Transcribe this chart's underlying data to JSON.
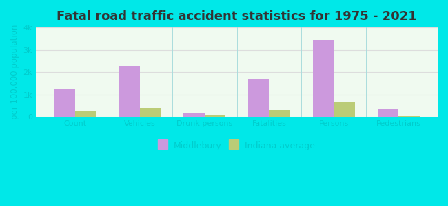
{
  "title": "Fatal road traffic accident statistics for 1975 - 2021",
  "categories": [
    "Count",
    "Vehicles",
    "Drunk persons",
    "Fatalities",
    "Persons",
    "Pedestrians"
  ],
  "middlebury": [
    1270,
    2270,
    175,
    1700,
    3450,
    355
  ],
  "indiana_avg": [
    280,
    400,
    55,
    305,
    650,
    30
  ],
  "middlebury_color": "#cc99dd",
  "indiana_color": "#bbcc77",
  "bar_width": 0.32,
  "ylabel": "per 100,000 population",
  "ylim": [
    0,
    4000
  ],
  "yticks": [
    0,
    1000,
    2000,
    3000,
    4000
  ],
  "ytick_labels": [
    "0",
    "1k",
    "2k",
    "3k",
    "4k"
  ],
  "legend_labels": [
    "Middlebury",
    "Indiana average"
  ],
  "bg_outer": "#00e8e8",
  "title_fontsize": 13,
  "axis_label_fontsize": 8.5,
  "tick_fontsize": 8,
  "legend_fontsize": 9,
  "tick_color": "#00cccc",
  "title_color": "#333333"
}
